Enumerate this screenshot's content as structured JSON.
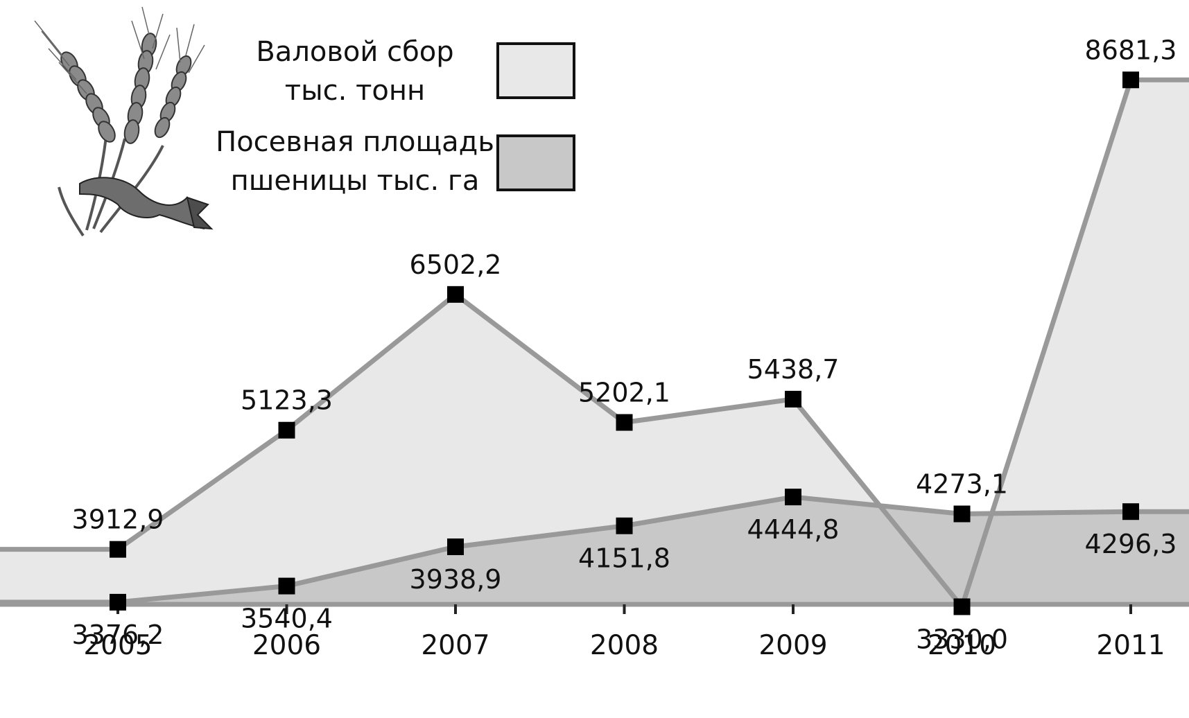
{
  "chart_data": {
    "type": "area",
    "categories": [
      "2005",
      "2006",
      "2007",
      "2008",
      "2009",
      "2010",
      "2011"
    ],
    "series": [
      {
        "name": "Валовой сбор тыс. тонн",
        "name_lines": [
          "Валовой сбор",
          "тыс. тонн"
        ],
        "values": [
          3912.9,
          5123.3,
          6502.2,
          5202.1,
          5438.7,
          3330.0,
          8681.3
        ],
        "labels": [
          "3912,9",
          "5123,3",
          "6502,2",
          "5202,1",
          "5438,7",
          "3330,0",
          "8681,3"
        ],
        "color": "#e8e8e8",
        "line_color": "#999999"
      },
      {
        "name": "Посевная площадь пшеницы тыс. га",
        "name_lines": [
          "Посевная площадь",
          "пшеницы тыс. га"
        ],
        "values": [
          3376.2,
          3540.4,
          3938.9,
          4151.8,
          4444.8,
          4273.1,
          4296.3
        ],
        "labels": [
          "3376,2",
          "3540,4",
          "3938,9",
          "4151,8",
          "4444,8",
          "4273,1",
          "4296,3"
        ],
        "color": "#c8c8c8",
        "line_color": "#999999"
      }
    ],
    "title": "",
    "xlabel": "",
    "ylabel": "",
    "ylim": [
      2200,
      9000
    ],
    "grid": false,
    "legend_position": "top-left",
    "marker": "square",
    "marker_color": "#000000"
  },
  "illustration": {
    "icon": "wheat-sheaf-icon"
  }
}
